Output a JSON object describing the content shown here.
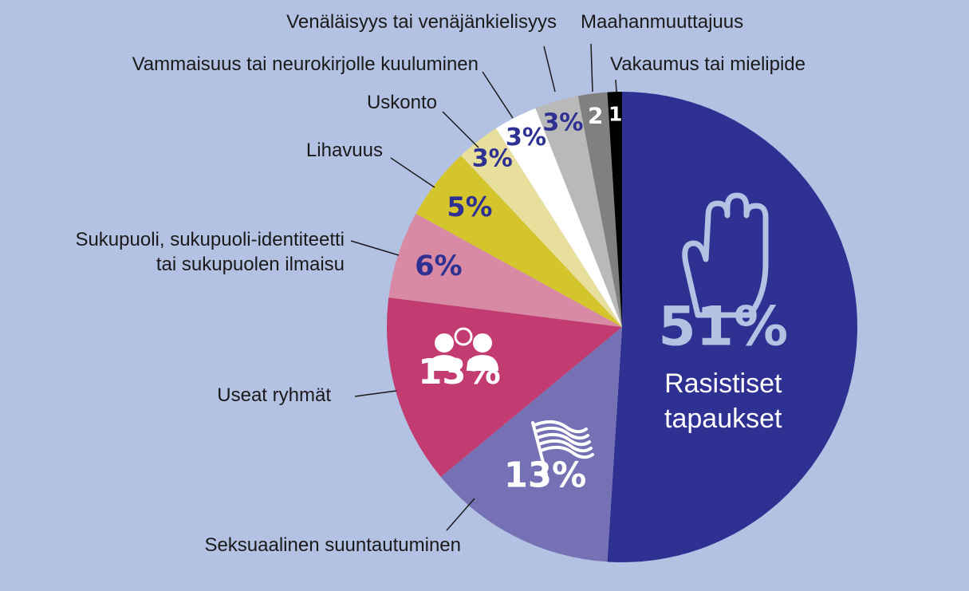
{
  "chart_data": {
    "type": "pie",
    "categories": [
      "Rasistiset tapaukset",
      "Seksuaalinen suuntautuminen",
      "Useat ryhmät",
      "Sukupuoli, sukupuoli-identiteetti tai sukupuolen ilmaisu",
      "Lihavuus",
      "Uskonto",
      "Vammaisuus tai neurokirjolle kuuluminen",
      "Venäläisyys tai venäjänkielisyys",
      "Maahanmuuttajuus",
      "Vakaumus tai mielipide"
    ],
    "values": [
      51,
      13,
      13,
      6,
      5,
      3,
      3,
      3,
      2,
      1
    ],
    "value_labels": [
      "51%",
      "13%",
      "13%",
      "6%",
      "5%",
      "3%",
      "3%",
      "3%",
      "2",
      "1"
    ],
    "colors": [
      "#2e3192",
      "#7571b4",
      "#c23c72",
      "#d88aa4",
      "#d5c52c",
      "#e9df9d",
      "#ffffff",
      "#b9b9b9",
      "#808080",
      "#000000"
    ],
    "label_colors": [
      "#b3c1e3",
      "#ffffff",
      "#ffffff",
      "#2e3192",
      "#2e3192",
      "#2e3192",
      "#2e3192",
      "#2e3192",
      "#ffffff",
      "#ffffff"
    ]
  }
}
